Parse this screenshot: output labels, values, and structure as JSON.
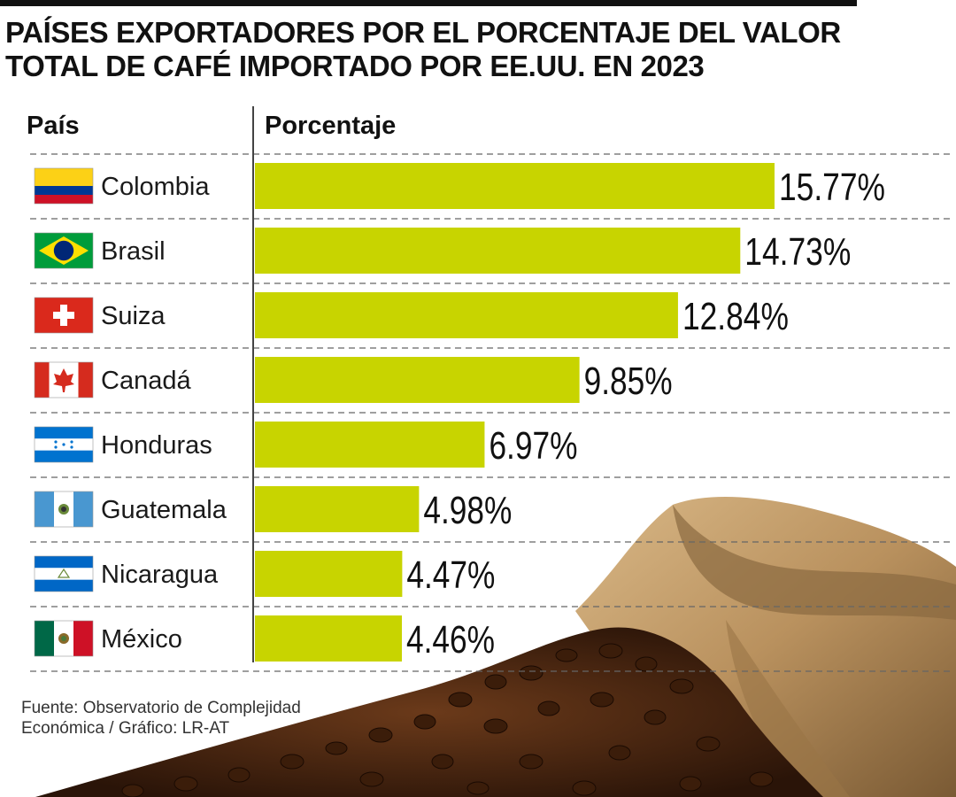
{
  "title_lines": [
    "PAÍSES EXPORTADORES POR EL PORCENTAJE DEL VALOR",
    "TOTAL DE CAFÉ IMPORTADO POR EE.UU. EN 2023"
  ],
  "headers": {
    "country": "País",
    "value": "Porcentaje"
  },
  "source_lines": [
    "Fuente: Observatorio de Complejidad",
    "Económica / Gráfico: LR-AT"
  ],
  "colors": {
    "bar": "#c8d400",
    "divider": "#666666",
    "text": "#111111"
  },
  "chart_data": {
    "type": "bar",
    "orientation": "horizontal",
    "title": "PAÍSES EXPORTADORES POR EL PORCENTAJE DEL VALOR TOTAL DE CAFÉ IMPORTADO POR EE.UU. EN 2023",
    "xlabel": "Porcentaje",
    "ylabel": "País",
    "categories": [
      "Colombia",
      "Brasil",
      "Suiza",
      "Canadá",
      "Honduras",
      "Guatemala",
      "Nicaragua",
      "México"
    ],
    "values": [
      15.77,
      14.73,
      12.84,
      9.85,
      6.97,
      4.98,
      4.47,
      4.46
    ],
    "value_labels": [
      "15.77%",
      "14.73%",
      "12.84%",
      "9.85%",
      "6.97%",
      "4.98%",
      "4.47%",
      "4.46%"
    ],
    "flags": [
      "colombia-flag-icon",
      "brazil-flag-icon",
      "switzerland-flag-icon",
      "canada-flag-icon",
      "honduras-flag-icon",
      "guatemala-flag-icon",
      "nicaragua-flag-icon",
      "mexico-flag-icon"
    ],
    "xlim": [
      0,
      15.77
    ],
    "grid": false,
    "legend": "none"
  }
}
